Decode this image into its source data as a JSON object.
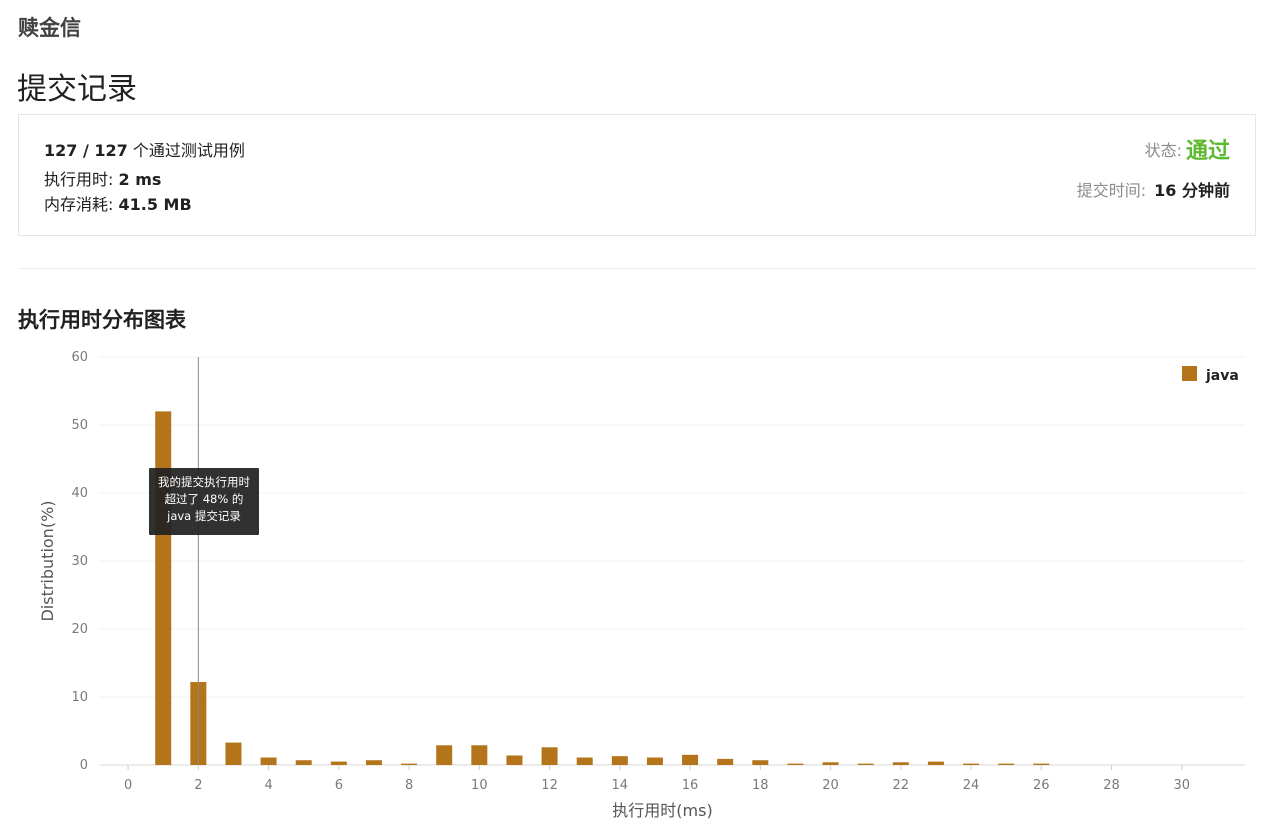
{
  "user": {
    "name": "赎金信"
  },
  "page": {
    "title": "提交记录"
  },
  "summary": {
    "passed": "127 / 127",
    "passed_suffix": " 个通过测试用例",
    "runtime_label": "执行用时: ",
    "runtime_value": "2 ms",
    "memory_label": "内存消耗: ",
    "memory_value": "41.5 MB",
    "status_label": "状态:",
    "status_value": "通过",
    "submit_time_label": "提交时间:",
    "submit_time_value": "16 分钟前"
  },
  "colors": {
    "bar": "#b3741a",
    "status_pass": "#5cb82f",
    "text": "#212121",
    "muted": "#8c8c8c"
  },
  "chart_section": {
    "title": "执行用时分布图表"
  },
  "tooltip": {
    "line1": "我的提交执行用时",
    "line2": "超过了 48% 的",
    "line3": "java 提交记录"
  },
  "chart_data": {
    "type": "bar",
    "title": "执行用时分布图表",
    "xlabel": "执行用时(ms)",
    "ylabel": "Distribution(%)",
    "xlim": [
      -0.8,
      31.8
    ],
    "ylim": [
      0,
      60
    ],
    "xticks": [
      0,
      2,
      4,
      6,
      8,
      10,
      12,
      14,
      16,
      18,
      20,
      22,
      24,
      26,
      28,
      30
    ],
    "yticks": [
      0,
      10,
      20,
      30,
      40,
      50,
      60
    ],
    "grid": true,
    "legend": "top-right",
    "marker_x": 2,
    "series": [
      {
        "name": "java",
        "x": [
          1,
          2,
          3,
          4,
          5,
          6,
          7,
          8,
          9,
          10,
          11,
          12,
          13,
          14,
          15,
          16,
          17,
          18,
          19,
          20,
          21,
          22,
          23,
          24,
          25,
          26
        ],
        "values": [
          52,
          12.2,
          3.3,
          1.1,
          0.7,
          0.5,
          0.7,
          0.2,
          2.9,
          2.9,
          1.4,
          2.6,
          1.1,
          1.3,
          1.1,
          1.5,
          0.9,
          0.7,
          0.2,
          0.4,
          0.2,
          0.4,
          0.5,
          0.2,
          0.2,
          0.2
        ]
      }
    ]
  }
}
